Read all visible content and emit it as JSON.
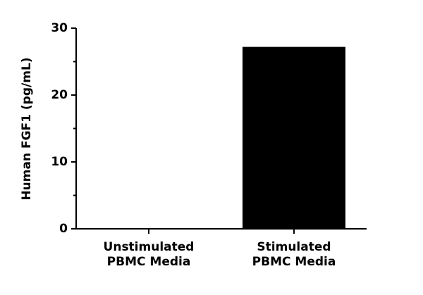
{
  "chart_data": {
    "type": "bar",
    "y_label": "Human FGF1 (pg/mL)",
    "categories": [
      "Unstimulated PBMC Media",
      "Stimulated PBMC Media"
    ],
    "values": [
      0,
      27.2
    ],
    "color": "#000000",
    "ylim": [
      0,
      30
    ],
    "yticks": [
      0,
      10,
      20,
      30
    ],
    "minor_yticks": [
      5,
      15,
      25
    ]
  }
}
